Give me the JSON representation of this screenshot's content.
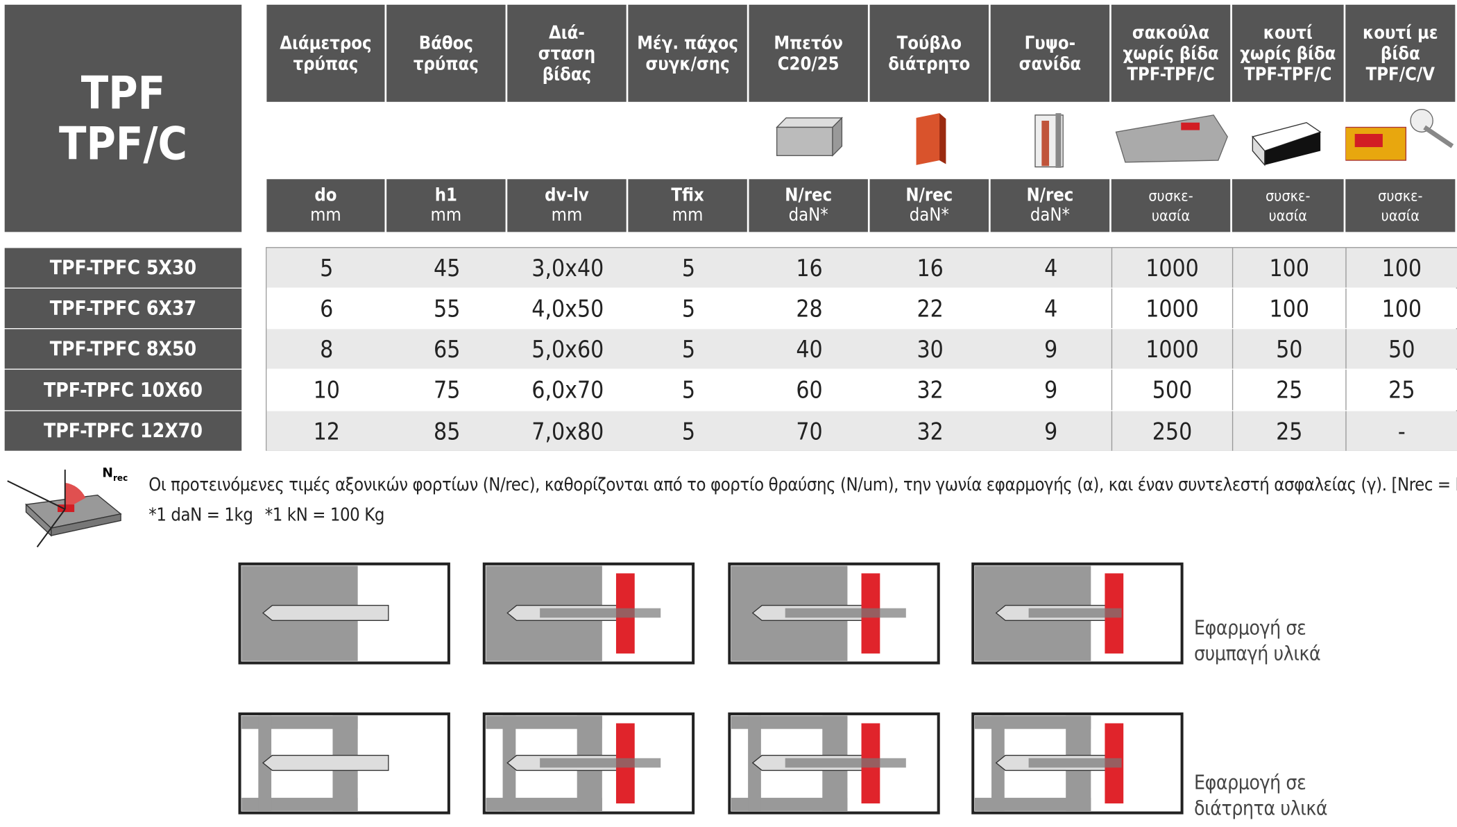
{
  "title": [
    "TPF",
    "TPF/C"
  ],
  "columns": [
    {
      "header": "Διάμετρος\nτρύπας",
      "symbol": "do",
      "unit": "mm"
    },
    {
      "header": "Βάθος\nτρύπας",
      "symbol": "h1",
      "unit": "mm"
    },
    {
      "header": "Διά-\nσταση\nβίδας",
      "symbol": "dv-lv",
      "unit": "mm"
    },
    {
      "header": "Μέγ. πάχος\nσυγκ/σης",
      "symbol": "Tfix",
      "unit": "mm"
    },
    {
      "header": "Μπετόν\nC20/25",
      "symbol": "N/rec",
      "unit": "daN*"
    },
    {
      "header": "Τούβλο\nδιάτρητο",
      "symbol": "N/rec",
      "unit": "daN*"
    },
    {
      "header": "Γυψο-\nσανίδα",
      "symbol": "N/rec",
      "unit": "daN*"
    },
    {
      "header": "σακούλα\nχωρίς βίδα\nTPF-TPF/C",
      "symbol": "συσκε-",
      "unit": "υασία"
    },
    {
      "header": "κουτί\nχωρίς βίδα\nTPF-TPF/C",
      "symbol": "συσκε-",
      "unit": "υασία"
    },
    {
      "header": "κουτί με\nβίδα\nTPF/C/V",
      "symbol": "συσκε-",
      "unit": "υασία"
    }
  ],
  "rows": [
    {
      "name": "TPF-TPFC 5X30",
      "values": [
        5,
        45,
        "3,0x40",
        5,
        16,
        16,
        4,
        1000,
        100,
        100
      ]
    },
    {
      "name": "TPF-TPFC 6X37",
      "values": [
        6,
        55,
        "4,0x50",
        5,
        28,
        22,
        4,
        1000,
        100,
        100
      ]
    },
    {
      "name": "TPF-TPFC 8X50",
      "values": [
        8,
        65,
        "5,0x60",
        5,
        40,
        30,
        9,
        1000,
        50,
        50
      ]
    },
    {
      "name": "TPF-TPFC 10X60",
      "values": [
        10,
        75,
        "6,0x70",
        5,
        60,
        32,
        9,
        500,
        25,
        25
      ]
    },
    {
      "name": "TPF-TPFC 12X70",
      "values": [
        12,
        85,
        "7,0x80",
        5,
        70,
        32,
        9,
        250,
        25,
        "-"
      ]
    }
  ],
  "diagram_label": {
    "main": "N",
    "sub": "rec"
  },
  "note": "Οι προτεινόμενες τιμές αξονικών φορτίων (N/rec), καθορίζονται από το φορτίο θραύσης (N/um), την γωνία εφαρμογής (α), και έναν συντελεστή ασφαλείας (γ).   [Nrec = Num / γ]",
  "conversions": [
    "*1 daN = 1kg",
    "*1 kN = 100 Kg"
  ],
  "applications": [
    "Εφαρμογή σε\nσυμπαγή υλικά",
    "Εφαρμογή σε\nδιάτρητα υλικά"
  ]
}
